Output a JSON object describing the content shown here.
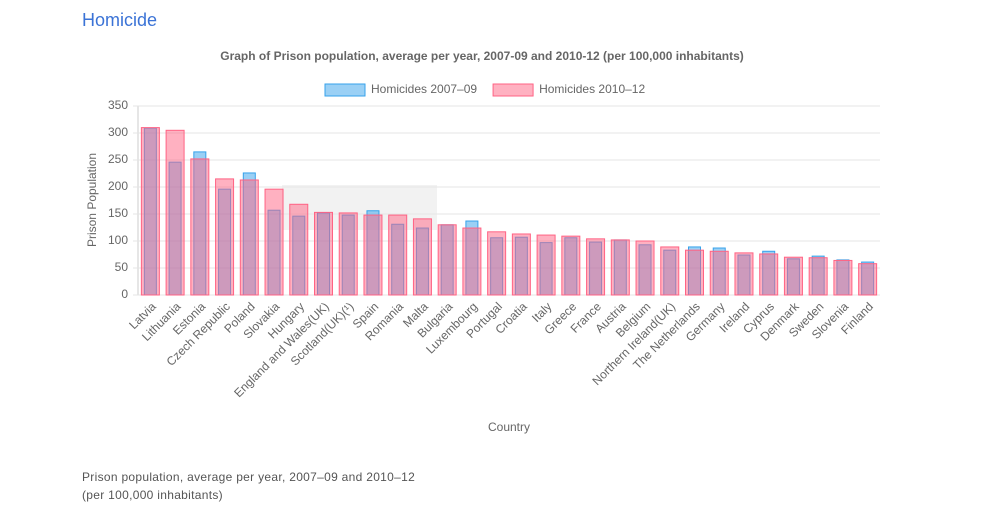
{
  "page": {
    "heading": "Homicide",
    "caption": [
      "Prison population, average per year, 2007–09 and 2010–12",
      "(per 100,000 inhabitants)"
    ]
  },
  "chart_data": {
    "type": "bar",
    "title": "Graph of Prison population, average per year, 2007-09 and 2010-12 (per 100,000 inhabitants)",
    "x_label": "Country",
    "y_label": "Prison Population",
    "categories": [
      "Latvia",
      "Lithuania",
      "Estonia",
      "Czech Republic",
      "Poland",
      "Slovakia",
      "Hungary",
      "England and Wales(UK)",
      "Scotland(UK)(¹)",
      "Spain",
      "Romania",
      "Malta",
      "Bulgaria",
      "Luxembourg",
      "Portugal",
      "Croatia",
      "Italy",
      "Greece",
      "France",
      "Austria",
      "Belgium",
      "Northern Ireland(UK)",
      "The Netherlands",
      "Germany",
      "Ireland",
      "Cyprus",
      "Denmark",
      "Sweden",
      "Slovenia",
      "Finland"
    ],
    "series": [
      {
        "name": "Homicides 2007–09",
        "color": "#36a2eb",
        "values": [
          309,
          246,
          265,
          196,
          226,
          157,
          146,
          152,
          148,
          156,
          131,
          124,
          130,
          137,
          106,
          107,
          97,
          106,
          98,
          102,
          93,
          83,
          89,
          87,
          74,
          81,
          67,
          72,
          65,
          61
        ]
      },
      {
        "name": "Homicides 2010–12",
        "color": "#ff6384",
        "values": [
          310,
          305,
          252,
          215,
          213,
          196,
          168,
          153,
          152,
          148,
          148,
          141,
          130,
          124,
          117,
          113,
          111,
          109,
          104,
          102,
          100,
          89,
          83,
          81,
          78,
          76,
          70,
          69,
          64,
          58
        ]
      }
    ],
    "ylim": [
      0,
      350
    ],
    "yticks": [
      0,
      50,
      100,
      150,
      200,
      250,
      300,
      350
    ],
    "grid": true
  }
}
